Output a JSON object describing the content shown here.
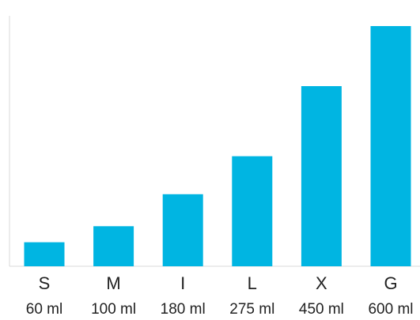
{
  "chart_data": {
    "type": "bar",
    "categories": [
      "S",
      "M",
      "I",
      "L",
      "X",
      "G"
    ],
    "sublabels": [
      "60 ml",
      "100 ml",
      "180 ml",
      "275 ml",
      "450 ml",
      "600 ml"
    ],
    "values": [
      60,
      100,
      180,
      275,
      450,
      600
    ],
    "title": "",
    "xlabel": "",
    "ylabel": "",
    "ylim": [
      0,
      600
    ],
    "grid": false,
    "legend": "none",
    "bar_color": "#00b5e2",
    "axis_color": "#d9d9d9"
  }
}
